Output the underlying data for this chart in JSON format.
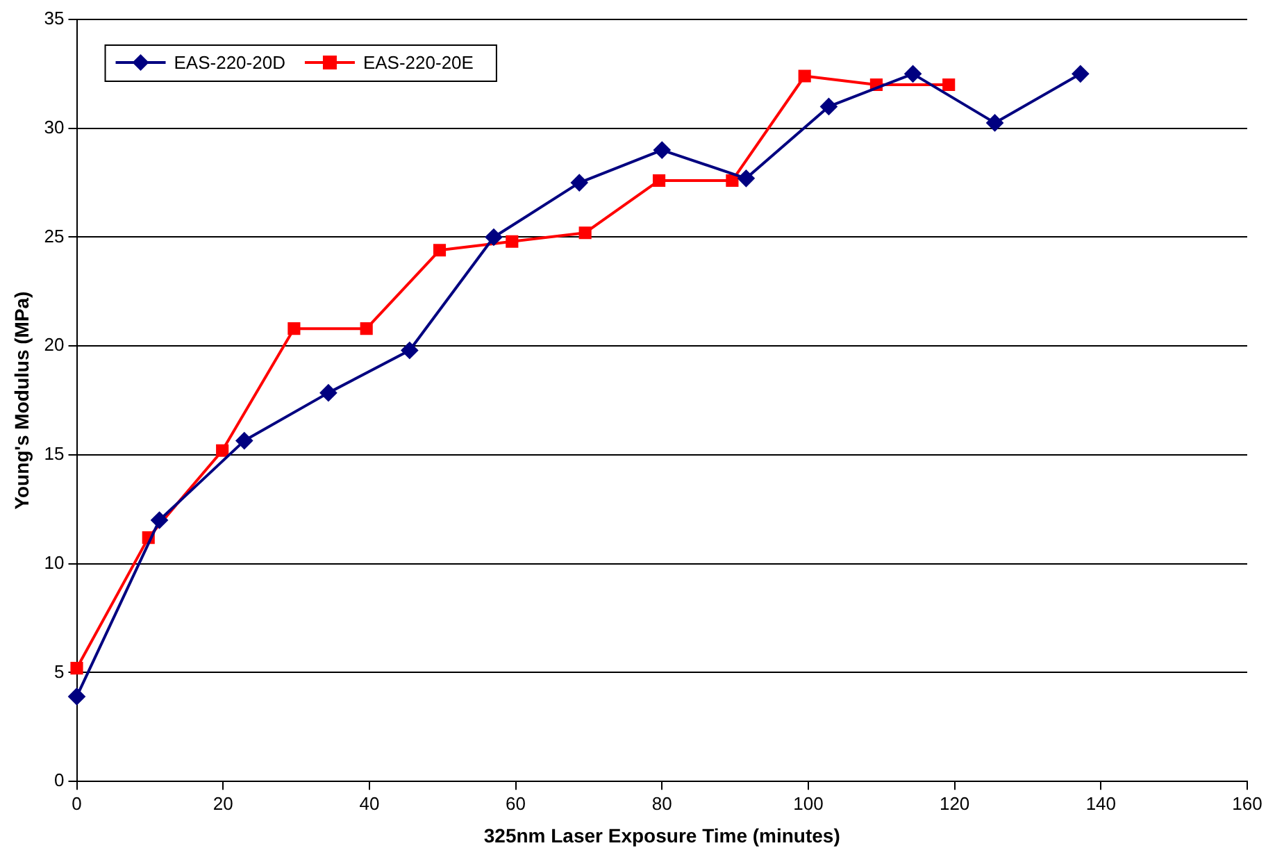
{
  "chart_data": {
    "type": "line",
    "xlabel": "325nm Laser Exposure Time (minutes)",
    "ylabel": "Young's Modulus (MPa)",
    "xlim": [
      0,
      160
    ],
    "xticks": [
      0,
      20,
      40,
      60,
      80,
      100,
      120,
      140,
      160
    ],
    "ylim": [
      0,
      35
    ],
    "yticks": [
      0,
      5,
      10,
      15,
      20,
      25,
      30,
      35
    ],
    "grid": "y",
    "legend": "top left",
    "line_style": "solid",
    "series": [
      {
        "name": "EAS-220-20D",
        "color": "#000080",
        "marker": "diamond",
        "x": [
          0,
          11.3,
          22.9,
          34.4,
          45.5,
          57,
          68.7,
          80,
          91.5,
          102.8,
          114.3,
          125.5,
          137.2
        ],
        "values": [
          3.9,
          12.0,
          15.65,
          17.85,
          19.8,
          25.0,
          27.5,
          29.0,
          27.7,
          31.0,
          32.5,
          30.25,
          32.5
        ]
      },
      {
        "name": "EAS-220-20E",
        "color": "#ff0000",
        "marker": "square",
        "x": [
          0,
          9.8,
          19.9,
          29.7,
          39.6,
          49.6,
          59.5,
          69.5,
          79.6,
          89.6,
          99.5,
          109.3,
          119.2
        ],
        "values": [
          5.2,
          11.2,
          15.2,
          20.8,
          20.8,
          24.4,
          24.8,
          25.2,
          27.6,
          27.6,
          32.4,
          32.0,
          32.0
        ]
      }
    ]
  }
}
